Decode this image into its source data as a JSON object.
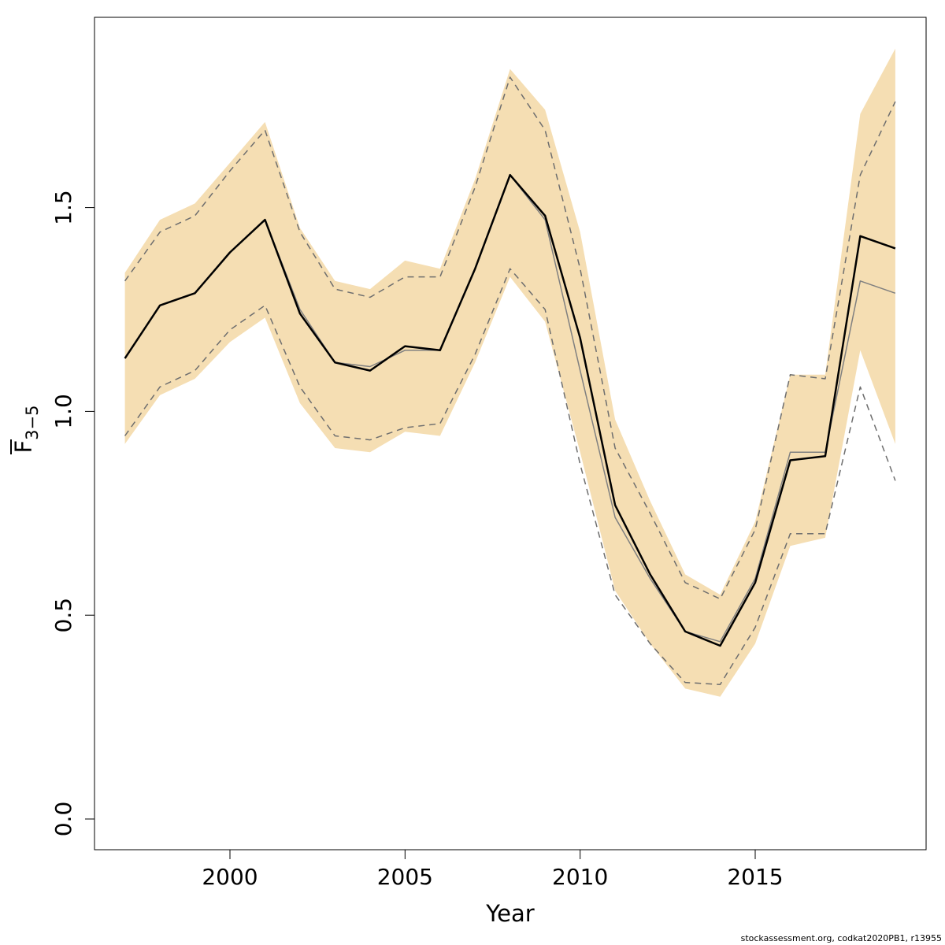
{
  "chart_data": {
    "type": "line",
    "xlabel": "Year",
    "ylabel_main": "F",
    "ylabel_sub": "3−5",
    "x": [
      1997,
      1998,
      1999,
      2000,
      2001,
      2002,
      2003,
      2004,
      2005,
      2006,
      2007,
      2008,
      2009,
      2010,
      2011,
      2012,
      2013,
      2014,
      2015,
      2016,
      2017,
      2018,
      2019
    ],
    "xlim": [
      1993.1,
      2016.9
    ],
    "ylim": [
      -0.07,
      1.97
    ],
    "xticks": [
      {
        "value": 2000,
        "label": "2000"
      },
      {
        "value": 2005,
        "label": "2005"
      },
      {
        "value": 2010,
        "label": "2010"
      },
      {
        "value": 2015,
        "label": "2015"
      }
    ],
    "yticks": [
      {
        "value": 0.0,
        "label": "0.0"
      },
      {
        "value": 0.5,
        "label": "0.5"
      },
      {
        "value": 1.0,
        "label": "1.0"
      },
      {
        "value": 1.5,
        "label": "1.5"
      }
    ],
    "band": {
      "color": "#f5deb3",
      "upper": [
        1.34,
        1.47,
        1.51,
        1.61,
        1.71,
        1.45,
        1.32,
        1.3,
        1.37,
        1.35,
        1.57,
        1.84,
        1.74,
        1.44,
        0.98,
        0.78,
        0.6,
        0.55,
        0.73,
        1.09,
        1.09,
        1.73,
        1.89
      ],
      "lower": [
        0.92,
        1.04,
        1.08,
        1.17,
        1.23,
        1.02,
        0.91,
        0.9,
        0.95,
        0.94,
        1.12,
        1.33,
        1.22,
        0.9,
        0.56,
        0.43,
        0.32,
        0.3,
        0.43,
        0.67,
        0.69,
        1.15,
        0.92
      ]
    },
    "series": [
      {
        "color": "#000000",
        "style": "solid",
        "values": [
          1.13,
          1.26,
          1.29,
          1.39,
          1.47,
          1.24,
          1.12,
          1.1,
          1.16,
          1.15,
          1.35,
          1.58,
          1.48,
          1.18,
          0.77,
          0.6,
          0.46,
          0.425,
          0.58,
          0.88,
          0.89,
          1.43,
          1.4
        ]
      },
      {
        "color": "#808080",
        "style": "solid",
        "values": [
          1.13,
          1.26,
          1.29,
          1.39,
          1.47,
          1.25,
          1.12,
          1.11,
          1.15,
          1.15,
          1.35,
          1.58,
          1.47,
          1.1,
          0.74,
          0.59,
          0.46,
          0.435,
          0.59,
          0.9,
          0.9,
          1.32,
          1.29
        ]
      },
      {
        "color": "#6e6e6e",
        "style": "dashed",
        "values": [
          1.32,
          1.44,
          1.48,
          1.59,
          1.69,
          1.44,
          1.3,
          1.28,
          1.33,
          1.33,
          1.55,
          1.82,
          1.69,
          1.35,
          0.91,
          0.75,
          0.58,
          0.54,
          0.71,
          1.09,
          1.08,
          1.58,
          1.76
        ]
      },
      {
        "color": "#6e6e6e",
        "style": "dashed",
        "values": [
          0.94,
          1.06,
          1.1,
          1.2,
          1.26,
          1.06,
          0.94,
          0.93,
          0.96,
          0.97,
          1.14,
          1.35,
          1.25,
          0.87,
          0.55,
          0.43,
          0.335,
          0.33,
          0.47,
          0.7,
          0.7,
          1.06,
          0.83
        ]
      }
    ]
  },
  "footer": {
    "credit": "stockassessment.org, codkat2020PB1, r13955"
  }
}
